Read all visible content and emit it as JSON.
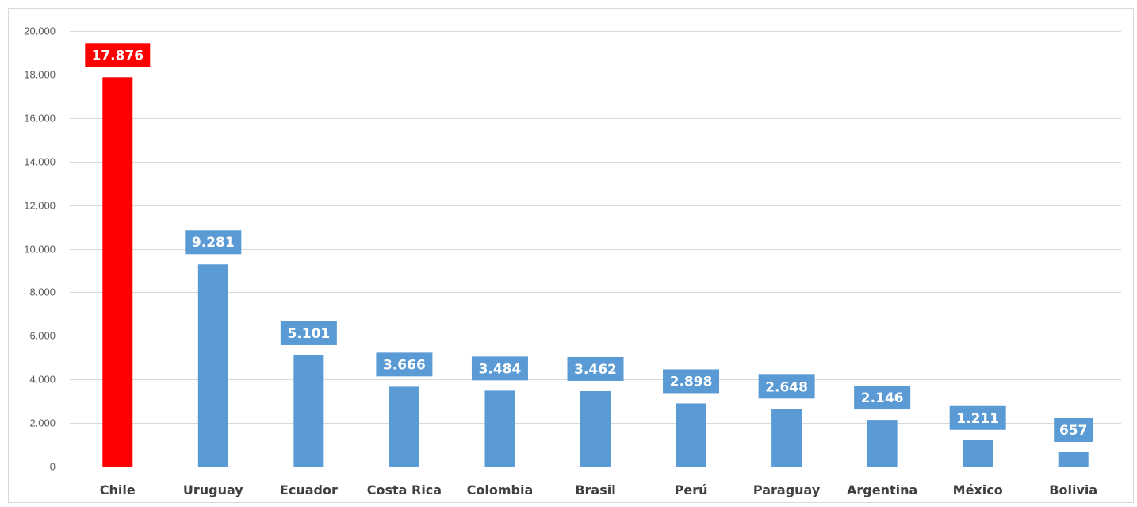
{
  "chart_data": {
    "type": "bar",
    "title": "",
    "xlabel": "",
    "ylabel": "",
    "categories": [
      "Chile",
      "Uruguay",
      "Ecuador",
      "Costa Rica",
      "Colombia",
      "Brasil",
      "Perú",
      "Paraguay",
      "Argentina",
      "México",
      "Bolivia"
    ],
    "values": [
      17876,
      9281,
      5101,
      3666,
      3484,
      3462,
      2898,
      2648,
      2146,
      1211,
      657
    ],
    "value_labels": [
      "17.876",
      "9.281",
      "5.101",
      "3.666",
      "3.484",
      "3.462",
      "2.898",
      "2.648",
      "2.146",
      "1.211",
      "657"
    ],
    "ylim": [
      0,
      20000
    ],
    "y_ticks": [
      0,
      2000,
      4000,
      6000,
      8000,
      10000,
      12000,
      14000,
      16000,
      18000,
      20000
    ],
    "y_tick_labels": [
      "0",
      "2.000",
      "4.000",
      "6.000",
      "8.000",
      "10.000",
      "12.000",
      "14.000",
      "16.000",
      "18.000",
      "20.000"
    ],
    "grid": true,
    "legend": "none",
    "colors": {
      "default_bar": "#5b9bd5",
      "highlight_bar": "#ff0000",
      "gridline": "#d9d9d9"
    },
    "highlight_category": "Chile"
  }
}
